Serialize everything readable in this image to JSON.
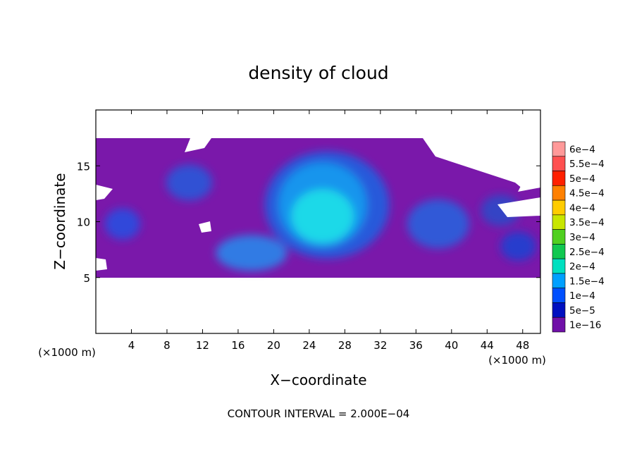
{
  "chart_data": {
    "type": "heatmap",
    "title": "density of cloud",
    "xlabel": "X−coordinate",
    "ylabel": "Z−coordinate",
    "x_unit_left": "(×1000 m)",
    "x_unit_right": "(×1000 m)",
    "xlim": [
      0,
      50
    ],
    "ylim": [
      0,
      20
    ],
    "xticks": [
      4,
      8,
      12,
      16,
      20,
      24,
      28,
      32,
      36,
      40,
      44,
      48
    ],
    "yticks": [
      5,
      10,
      15
    ],
    "footer": "CONTOUR INTERVAL = 2.000E−04",
    "colorbar": {
      "labels": [
        "6e−4",
        "5.5e−4",
        "5e−4",
        "4.5e−4",
        "4e−4",
        "3.5e−4",
        "3e−4",
        "2.5e−4",
        "2e−4",
        "1.5e−4",
        "1e−4",
        "5e−5",
        "1e−16"
      ],
      "colors": [
        "#ff9999",
        "#ff5050",
        "#ff2000",
        "#ff8000",
        "#ffcc00",
        "#c8e600",
        "#50d020",
        "#10c850",
        "#00e0c0",
        "#00a0ff",
        "#0050ff",
        "#0010c0",
        "#7010a8"
      ]
    },
    "field": {
      "background_color": "#7a18aa",
      "blobs": [
        {
          "cx": 25.5,
          "cz": 10.5,
          "rx": 3.5,
          "rz": 2.4,
          "color": "#1ee0e8"
        },
        {
          "cx": 25.5,
          "cz": 11.5,
          "rx": 5.0,
          "rz": 3.8,
          "color": "#1a9cf0"
        },
        {
          "cx": 26,
          "cz": 11.5,
          "rx": 7.0,
          "rz": 4.8,
          "color": "#2060e0"
        },
        {
          "cx": 17.5,
          "cz": 7.2,
          "rx": 4.0,
          "rz": 1.6,
          "color": "#2a86ea"
        },
        {
          "cx": 10.5,
          "cz": 13.5,
          "rx": 2.6,
          "rz": 1.6,
          "color": "#2a58d8"
        },
        {
          "cx": 3.0,
          "cz": 9.8,
          "rx": 2.0,
          "rz": 1.4,
          "color": "#2a4ee0"
        },
        {
          "cx": 38.5,
          "cz": 9.8,
          "rx": 3.5,
          "rz": 2.2,
          "color": "#2a60dc"
        },
        {
          "cx": 45.5,
          "cz": 11.0,
          "rx": 2.2,
          "rz": 1.4,
          "color": "#2c48c8"
        },
        {
          "cx": 47.5,
          "cz": 7.8,
          "rx": 2.0,
          "rz": 1.3,
          "color": "#2040d0"
        }
      ]
    }
  }
}
